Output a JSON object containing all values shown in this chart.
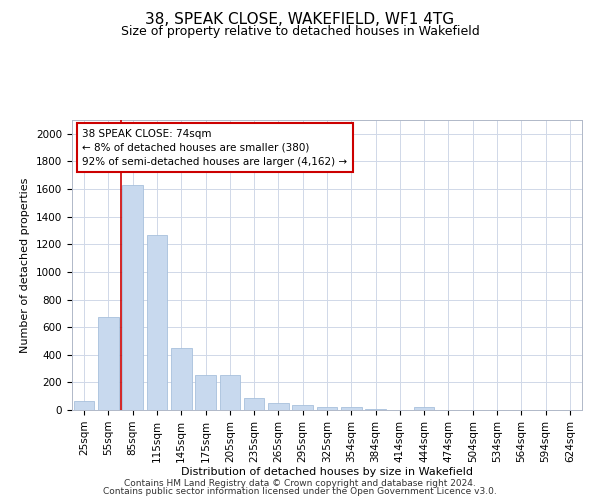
{
  "title1": "38, SPEAK CLOSE, WAKEFIELD, WF1 4TG",
  "title2": "Size of property relative to detached houses in Wakefield",
  "xlabel": "Distribution of detached houses by size in Wakefield",
  "ylabel": "Number of detached properties",
  "categories": [
    "25sqm",
    "55sqm",
    "85sqm",
    "115sqm",
    "145sqm",
    "175sqm",
    "205sqm",
    "235sqm",
    "265sqm",
    "295sqm",
    "325sqm",
    "354sqm",
    "384sqm",
    "414sqm",
    "444sqm",
    "474sqm",
    "504sqm",
    "534sqm",
    "564sqm",
    "594sqm",
    "624sqm"
  ],
  "values": [
    65,
    670,
    1630,
    1270,
    450,
    250,
    250,
    85,
    50,
    35,
    25,
    25,
    10,
    0,
    25,
    0,
    0,
    0,
    0,
    0,
    0
  ],
  "bar_color": "#c8d9ee",
  "bar_edge_color": "#a8c0dc",
  "marker_color": "#cc0000",
  "annotation_text": "38 SPEAK CLOSE: 74sqm\n← 8% of detached houses are smaller (380)\n92% of semi-detached houses are larger (4,162) →",
  "annotation_box_color": "#ffffff",
  "annotation_box_edge": "#cc0000",
  "ylim": [
    0,
    2100
  ],
  "yticks": [
    0,
    200,
    400,
    600,
    800,
    1000,
    1200,
    1400,
    1600,
    1800,
    2000
  ],
  "grid_color": "#d0d8e8",
  "footer1": "Contains HM Land Registry data © Crown copyright and database right 2024.",
  "footer2": "Contains public sector information licensed under the Open Government Licence v3.0.",
  "title1_fontsize": 11,
  "title2_fontsize": 9,
  "axis_label_fontsize": 8,
  "tick_fontsize": 7.5,
  "annotation_fontsize": 7.5,
  "footer_fontsize": 6.5
}
